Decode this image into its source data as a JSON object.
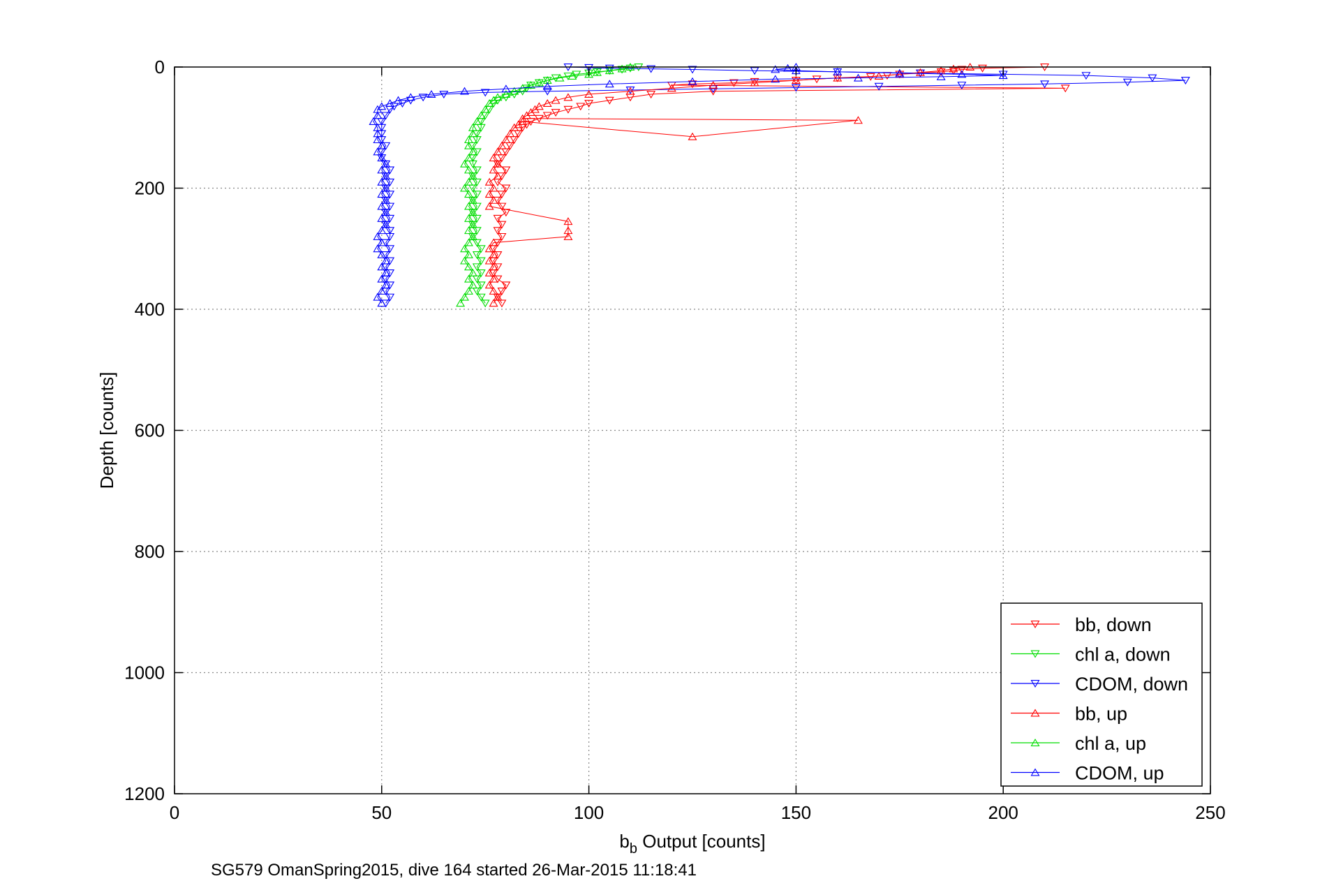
{
  "chart_data": {
    "type": "scatter",
    "xlabel_main": "b",
    "xlabel_sub": "b",
    "xlabel_rest": " Output [counts]",
    "ylabel": "Depth [counts]",
    "footer": "SG579 OmanSpring2015, dive 164 started 26-Mar-2015 11:18:41",
    "xlim": [
      0,
      250
    ],
    "ylim": [
      0,
      1200
    ],
    "y_reversed": true,
    "xticks": [
      0,
      50,
      100,
      150,
      200,
      250
    ],
    "yticks": [
      0,
      200,
      400,
      600,
      800,
      1000,
      1200
    ],
    "grid": true,
    "legend_position": "bottom-right",
    "series": [
      {
        "name": "bb, down",
        "color": "#ff0000",
        "marker": "triangle-down",
        "points": [
          [
            210,
            0
          ],
          [
            195,
            2
          ],
          [
            190,
            4
          ],
          [
            188,
            6
          ],
          [
            185,
            8
          ],
          [
            180,
            10
          ],
          [
            175,
            12
          ],
          [
            172,
            14
          ],
          [
            168,
            16
          ],
          [
            160,
            18
          ],
          [
            155,
            20
          ],
          [
            150,
            22
          ],
          [
            140,
            24
          ],
          [
            135,
            26
          ],
          [
            125,
            28
          ],
          [
            120,
            30
          ],
          [
            215,
            35
          ],
          [
            130,
            40
          ],
          [
            115,
            45
          ],
          [
            110,
            50
          ],
          [
            105,
            55
          ],
          [
            100,
            60
          ],
          [
            98,
            65
          ],
          [
            95,
            70
          ],
          [
            92,
            75
          ],
          [
            90,
            80
          ],
          [
            88,
            85
          ],
          [
            86,
            90
          ],
          [
            85,
            95
          ],
          [
            84,
            100
          ],
          [
            83,
            110
          ],
          [
            82,
            120
          ],
          [
            81,
            130
          ],
          [
            80,
            140
          ],
          [
            79,
            150
          ],
          [
            78,
            160
          ],
          [
            80,
            170
          ],
          [
            79,
            180
          ],
          [
            78,
            190
          ],
          [
            80,
            200
          ],
          [
            79,
            210
          ],
          [
            78,
            220
          ],
          [
            79,
            230
          ],
          [
            80,
            240
          ],
          [
            78,
            250
          ],
          [
            79,
            260
          ],
          [
            78,
            270
          ],
          [
            79,
            280
          ],
          [
            78,
            290
          ],
          [
            77,
            300
          ],
          [
            78,
            310
          ],
          [
            77,
            320
          ],
          [
            78,
            330
          ],
          [
            77,
            340
          ],
          [
            78,
            350
          ],
          [
            80,
            360
          ],
          [
            79,
            370
          ],
          [
            78,
            380
          ],
          [
            79,
            390
          ]
        ]
      },
      {
        "name": "chl a, down",
        "color": "#00dd00",
        "marker": "triangle-down",
        "points": [
          [
            112,
            0
          ],
          [
            110,
            2
          ],
          [
            108,
            4
          ],
          [
            105,
            6
          ],
          [
            102,
            8
          ],
          [
            100,
            10
          ],
          [
            97,
            12
          ],
          [
            95,
            15
          ],
          [
            92,
            18
          ],
          [
            90,
            22
          ],
          [
            88,
            26
          ],
          [
            86,
            30
          ],
          [
            85,
            35
          ],
          [
            84,
            40
          ],
          [
            82,
            45
          ],
          [
            80,
            50
          ],
          [
            78,
            55
          ],
          [
            77,
            60
          ],
          [
            76,
            70
          ],
          [
            75,
            80
          ],
          [
            74,
            90
          ],
          [
            74,
            100
          ],
          [
            73,
            110
          ],
          [
            73,
            120
          ],
          [
            72,
            130
          ],
          [
            73,
            140
          ],
          [
            72,
            150
          ],
          [
            72,
            160
          ],
          [
            73,
            170
          ],
          [
            72,
            180
          ],
          [
            73,
            190
          ],
          [
            72,
            200
          ],
          [
            73,
            210
          ],
          [
            72,
            220
          ],
          [
            73,
            230
          ],
          [
            72,
            240
          ],
          [
            73,
            250
          ],
          [
            72,
            260
          ],
          [
            73,
            270
          ],
          [
            72,
            280
          ],
          [
            73,
            290
          ],
          [
            74,
            300
          ],
          [
            73,
            310
          ],
          [
            74,
            320
          ],
          [
            73,
            330
          ],
          [
            74,
            340
          ],
          [
            73,
            350
          ],
          [
            74,
            360
          ],
          [
            73,
            370
          ],
          [
            74,
            380
          ],
          [
            75,
            390
          ]
        ]
      },
      {
        "name": "CDOM, down",
        "color": "#0000ff",
        "marker": "triangle-down",
        "points": [
          [
            95,
            0
          ],
          [
            100,
            1
          ],
          [
            105,
            2
          ],
          [
            115,
            3
          ],
          [
            125,
            4
          ],
          [
            140,
            6
          ],
          [
            160,
            8
          ],
          [
            180,
            10
          ],
          [
            200,
            12
          ],
          [
            220,
            14
          ],
          [
            236,
            18
          ],
          [
            244,
            22
          ],
          [
            230,
            25
          ],
          [
            210,
            28
          ],
          [
            190,
            30
          ],
          [
            170,
            32
          ],
          [
            150,
            34
          ],
          [
            130,
            36
          ],
          [
            110,
            38
          ],
          [
            90,
            40
          ],
          [
            75,
            42
          ],
          [
            65,
            45
          ],
          [
            60,
            50
          ],
          [
            57,
            55
          ],
          [
            55,
            60
          ],
          [
            53,
            65
          ],
          [
            52,
            70
          ],
          [
            51,
            80
          ],
          [
            50,
            90
          ],
          [
            50,
            100
          ],
          [
            50,
            110
          ],
          [
            50,
            120
          ],
          [
            51,
            130
          ],
          [
            50,
            140
          ],
          [
            50,
            150
          ],
          [
            51,
            160
          ],
          [
            52,
            170
          ],
          [
            51,
            180
          ],
          [
            52,
            190
          ],
          [
            51,
            200
          ],
          [
            52,
            210
          ],
          [
            51,
            220
          ],
          [
            52,
            230
          ],
          [
            51,
            240
          ],
          [
            52,
            250
          ],
          [
            51,
            260
          ],
          [
            52,
            270
          ],
          [
            52,
            280
          ],
          [
            51,
            290
          ],
          [
            52,
            300
          ],
          [
            51,
            310
          ],
          [
            52,
            320
          ],
          [
            51,
            330
          ],
          [
            52,
            340
          ],
          [
            51,
            350
          ],
          [
            52,
            360
          ],
          [
            51,
            370
          ],
          [
            52,
            380
          ],
          [
            51,
            390
          ]
        ]
      },
      {
        "name": "bb, up",
        "color": "#ff0000",
        "marker": "triangle-up",
        "points": [
          [
            192,
            0
          ],
          [
            188,
            3
          ],
          [
            185,
            6
          ],
          [
            180,
            9
          ],
          [
            175,
            12
          ],
          [
            170,
            15
          ],
          [
            160,
            18
          ],
          [
            150,
            22
          ],
          [
            140,
            26
          ],
          [
            130,
            30
          ],
          [
            120,
            35
          ],
          [
            110,
            40
          ],
          [
            100,
            45
          ],
          [
            95,
            50
          ],
          [
            92,
            55
          ],
          [
            90,
            60
          ],
          [
            88,
            65
          ],
          [
            87,
            70
          ],
          [
            86,
            75
          ],
          [
            85,
            80
          ],
          [
            84,
            85
          ],
          [
            165,
            88
          ],
          [
            125,
            115
          ],
          [
            84,
            90
          ],
          [
            83,
            95
          ],
          [
            82,
            100
          ],
          [
            81,
            110
          ],
          [
            80,
            120
          ],
          [
            79,
            130
          ],
          [
            78,
            140
          ],
          [
            77,
            150
          ],
          [
            78,
            160
          ],
          [
            77,
            170
          ],
          [
            78,
            180
          ],
          [
            76,
            190
          ],
          [
            77,
            200
          ],
          [
            76,
            210
          ],
          [
            77,
            220
          ],
          [
            76,
            230
          ],
          [
            95,
            255
          ],
          [
            95,
            270
          ],
          [
            95,
            280
          ],
          [
            77,
            290
          ],
          [
            76,
            300
          ],
          [
            77,
            310
          ],
          [
            76,
            320
          ],
          [
            77,
            330
          ],
          [
            76,
            340
          ],
          [
            77,
            350
          ],
          [
            76,
            360
          ],
          [
            77,
            370
          ],
          [
            78,
            380
          ],
          [
            77,
            390
          ]
        ]
      },
      {
        "name": "chl a, up",
        "color": "#00dd00",
        "marker": "triangle-up",
        "points": [
          [
            110,
            0
          ],
          [
            108,
            3
          ],
          [
            105,
            6
          ],
          [
            102,
            9
          ],
          [
            100,
            12
          ],
          [
            96,
            15
          ],
          [
            93,
            18
          ],
          [
            90,
            22
          ],
          [
            88,
            26
          ],
          [
            86,
            30
          ],
          [
            84,
            35
          ],
          [
            82,
            40
          ],
          [
            80,
            45
          ],
          [
            78,
            50
          ],
          [
            77,
            55
          ],
          [
            76,
            60
          ],
          [
            75,
            70
          ],
          [
            74,
            80
          ],
          [
            73,
            90
          ],
          [
            72,
            100
          ],
          [
            72,
            110
          ],
          [
            71,
            120
          ],
          [
            71,
            130
          ],
          [
            72,
            140
          ],
          [
            71,
            150
          ],
          [
            70,
            160
          ],
          [
            71,
            170
          ],
          [
            72,
            180
          ],
          [
            71,
            190
          ],
          [
            70,
            200
          ],
          [
            71,
            210
          ],
          [
            72,
            220
          ],
          [
            71,
            230
          ],
          [
            72,
            240
          ],
          [
            71,
            250
          ],
          [
            72,
            260
          ],
          [
            71,
            270
          ],
          [
            72,
            280
          ],
          [
            71,
            290
          ],
          [
            70,
            300
          ],
          [
            71,
            310
          ],
          [
            70,
            320
          ],
          [
            71,
            330
          ],
          [
            72,
            340
          ],
          [
            71,
            350
          ],
          [
            72,
            360
          ],
          [
            71,
            370
          ],
          [
            70,
            380
          ],
          [
            69,
            390
          ]
        ]
      },
      {
        "name": "CDOM, up",
        "color": "#0000ff",
        "marker": "triangle-up",
        "points": [
          [
            150,
            0
          ],
          [
            148,
            2
          ],
          [
            145,
            4
          ],
          [
            150,
            6
          ],
          [
            160,
            8
          ],
          [
            175,
            10
          ],
          [
            190,
            12
          ],
          [
            200,
            14
          ],
          [
            185,
            16
          ],
          [
            165,
            18
          ],
          [
            145,
            20
          ],
          [
            125,
            24
          ],
          [
            105,
            28
          ],
          [
            90,
            32
          ],
          [
            80,
            36
          ],
          [
            70,
            40
          ],
          [
            62,
            45
          ],
          [
            57,
            50
          ],
          [
            54,
            55
          ],
          [
            52,
            60
          ],
          [
            50,
            65
          ],
          [
            49,
            70
          ],
          [
            49,
            80
          ],
          [
            48,
            90
          ],
          [
            49,
            100
          ],
          [
            49,
            110
          ],
          [
            49,
            120
          ],
          [
            50,
            130
          ],
          [
            49,
            140
          ],
          [
            50,
            150
          ],
          [
            51,
            160
          ],
          [
            50,
            170
          ],
          [
            51,
            180
          ],
          [
            50,
            190
          ],
          [
            51,
            200
          ],
          [
            50,
            210
          ],
          [
            51,
            220
          ],
          [
            50,
            230
          ],
          [
            51,
            240
          ],
          [
            50,
            250
          ],
          [
            51,
            260
          ],
          [
            50,
            270
          ],
          [
            49,
            280
          ],
          [
            50,
            290
          ],
          [
            49,
            300
          ],
          [
            50,
            310
          ],
          [
            51,
            320
          ],
          [
            50,
            330
          ],
          [
            51,
            340
          ],
          [
            50,
            350
          ],
          [
            51,
            360
          ],
          [
            50,
            370
          ],
          [
            49,
            380
          ],
          [
            50,
            390
          ]
        ]
      }
    ]
  }
}
